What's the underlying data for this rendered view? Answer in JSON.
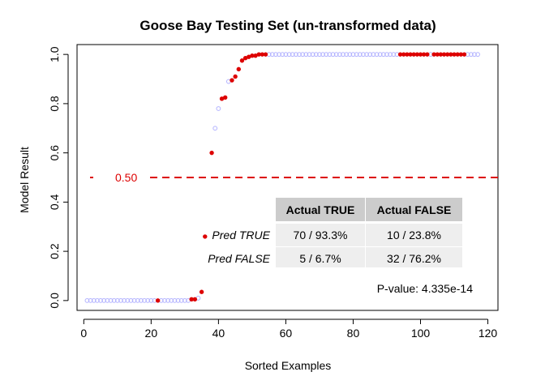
{
  "chart_data": {
    "type": "scatter",
    "title": "Goose Bay Testing Set (un-transformed data)",
    "xlabel": "Sorted Examples",
    "ylabel": "Model Result",
    "xlim": [
      -2,
      123
    ],
    "ylim": [
      -0.04,
      1.04
    ],
    "x_ticks": [
      "0",
      "20",
      "40",
      "60",
      "80",
      "100",
      "120"
    ],
    "x_tick_values": [
      0,
      20,
      40,
      60,
      80,
      100,
      120
    ],
    "y_ticks": [
      "0.0",
      "0.2",
      "0.4",
      "0.6",
      "0.8",
      "1.0"
    ],
    "y_tick_values": [
      0.0,
      0.2,
      0.4,
      0.6,
      0.8,
      1.0
    ],
    "grid": false,
    "threshold": {
      "value": 0.5,
      "label": "0.50",
      "color": "#dd0000"
    },
    "series": [
      {
        "color": "#b3b3ff",
        "marker": "open-circle",
        "points": [
          [
            1,
            0
          ],
          [
            2,
            0
          ],
          [
            3,
            0
          ],
          [
            4,
            0
          ],
          [
            5,
            0
          ],
          [
            6,
            0
          ],
          [
            7,
            0
          ],
          [
            8,
            0
          ],
          [
            9,
            0
          ],
          [
            10,
            0
          ],
          [
            11,
            0
          ],
          [
            12,
            0
          ],
          [
            13,
            0
          ],
          [
            14,
            0
          ],
          [
            15,
            0
          ],
          [
            16,
            0
          ],
          [
            17,
            0
          ],
          [
            18,
            0
          ],
          [
            19,
            0
          ],
          [
            20,
            0
          ],
          [
            21,
            0
          ],
          [
            23,
            0
          ],
          [
            24,
            0
          ],
          [
            25,
            0
          ],
          [
            26,
            0
          ],
          [
            27,
            0
          ],
          [
            28,
            0
          ],
          [
            29,
            0
          ],
          [
            30,
            0
          ],
          [
            31,
            0
          ],
          [
            34,
            0.01
          ],
          [
            39,
            0.7
          ],
          [
            40,
            0.78
          ],
          [
            43,
            0.89
          ],
          [
            55,
            1
          ],
          [
            56,
            1
          ],
          [
            57,
            1
          ],
          [
            58,
            1
          ],
          [
            59,
            1
          ],
          [
            60,
            1
          ],
          [
            61,
            1
          ],
          [
            62,
            1
          ],
          [
            63,
            1
          ],
          [
            64,
            1
          ],
          [
            65,
            1
          ],
          [
            66,
            1
          ],
          [
            67,
            1
          ],
          [
            68,
            1
          ],
          [
            69,
            1
          ],
          [
            70,
            1
          ],
          [
            71,
            1
          ],
          [
            72,
            1
          ],
          [
            73,
            1
          ],
          [
            74,
            1
          ],
          [
            75,
            1
          ],
          [
            76,
            1
          ],
          [
            77,
            1
          ],
          [
            78,
            1
          ],
          [
            79,
            1
          ],
          [
            80,
            1
          ],
          [
            81,
            1
          ],
          [
            82,
            1
          ],
          [
            83,
            1
          ],
          [
            84,
            1
          ],
          [
            85,
            1
          ],
          [
            86,
            1
          ],
          [
            87,
            1
          ],
          [
            88,
            1
          ],
          [
            89,
            1
          ],
          [
            90,
            1
          ],
          [
            91,
            1
          ],
          [
            92,
            1
          ],
          [
            93,
            1
          ],
          [
            103,
            1
          ],
          [
            114,
            1
          ],
          [
            115,
            1
          ],
          [
            116,
            1
          ],
          [
            117,
            1
          ]
        ]
      },
      {
        "color": "#dd0000",
        "marker": "filled-circle",
        "points": [
          [
            22,
            0
          ],
          [
            32,
            0.005
          ],
          [
            33,
            0.005
          ],
          [
            35,
            0.035
          ],
          [
            36,
            0.26
          ],
          [
            38,
            0.6
          ],
          [
            41,
            0.82
          ],
          [
            42,
            0.825
          ],
          [
            44,
            0.895
          ],
          [
            45,
            0.91
          ],
          [
            46,
            0.94
          ],
          [
            47,
            0.975
          ],
          [
            48,
            0.985
          ],
          [
            49,
            0.99
          ],
          [
            50,
            0.995
          ],
          [
            51,
            0.995
          ],
          [
            52,
            1
          ],
          [
            53,
            1
          ],
          [
            54,
            1
          ],
          [
            94,
            1
          ],
          [
            95,
            1
          ],
          [
            96,
            1
          ],
          [
            97,
            1
          ],
          [
            98,
            1
          ],
          [
            99,
            1
          ],
          [
            100,
            1
          ],
          [
            101,
            1
          ],
          [
            102,
            1
          ],
          [
            104,
            1
          ],
          [
            105,
            1
          ],
          [
            106,
            1
          ],
          [
            107,
            1
          ],
          [
            108,
            1
          ],
          [
            109,
            1
          ],
          [
            110,
            1
          ],
          [
            111,
            1
          ],
          [
            112,
            1
          ],
          [
            113,
            1
          ]
        ]
      }
    ],
    "table": {
      "col_headers": [
        "Actual TRUE",
        "Actual FALSE"
      ],
      "rows": [
        {
          "label": "Pred TRUE",
          "cells": [
            "70 / 93.3%",
            "10 / 23.8%"
          ]
        },
        {
          "label": "Pred FALSE",
          "cells": [
            "5 / 6.7%",
            "32 / 76.2%"
          ]
        }
      ]
    },
    "annotation": "P-value: 4.335e-14"
  },
  "colors": {
    "header_bg": "#cccccc",
    "cell_bg": "#eeeeee",
    "axis": "#000000"
  }
}
